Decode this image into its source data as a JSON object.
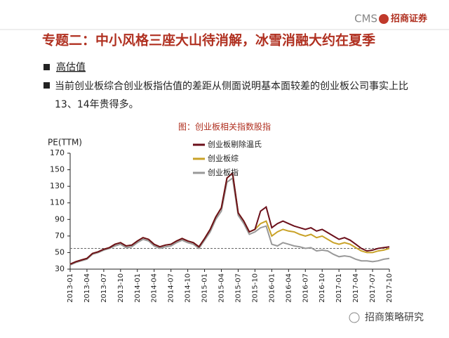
{
  "header": {
    "title": "专题二：中小风格三座大山待消解，冰雪消融大约在夏季",
    "logo_brand": "CMS",
    "logo_name": "招商证券"
  },
  "bullets": [
    "高估值",
    "当前创业板综合创业板指估值的差距从侧面说明基本面较差的创业板公司事实上比13、14年贵得多。"
  ],
  "footer": "招商策略研究",
  "chart_data": {
    "type": "line",
    "title": "图：创业板相关指数股指",
    "y_label": "PE(TTM)",
    "categories": [
      "2013-01",
      null,
      null,
      "2013-04",
      null,
      null,
      "2013-07",
      null,
      null,
      "2013-10",
      null,
      null,
      "2014-01",
      null,
      null,
      "2014-04",
      null,
      null,
      "2014-07",
      null,
      null,
      "2014-10",
      null,
      null,
      "2015-01",
      null,
      null,
      "2015-04",
      null,
      null,
      "2015-07",
      null,
      null,
      "2015-10",
      null,
      null,
      "2016-01",
      null,
      null,
      "2016-04",
      null,
      null,
      "2016-07",
      null,
      null,
      "2016-10",
      null,
      null,
      "2017-01",
      null,
      null,
      "2017-04",
      null,
      null,
      "2017-07",
      null,
      null,
      "2017-10"
    ],
    "series": [
      {
        "name": "创业板剔除温氏",
        "color": "#6b0f1a",
        "values": [
          36,
          39,
          41,
          43,
          49,
          51,
          54,
          56,
          60,
          62,
          58,
          59,
          64,
          68,
          66,
          60,
          57,
          59,
          60,
          64,
          67,
          64,
          62,
          57,
          67,
          78,
          93,
          104,
          140,
          146,
          98,
          88,
          75,
          78,
          100,
          105,
          80,
          85,
          88,
          85,
          82,
          80,
          78,
          80,
          76,
          78,
          74,
          70,
          66,
          68,
          65,
          60,
          55,
          52,
          53,
          55,
          56,
          57
        ]
      },
      {
        "name": "创业板综",
        "color": "#c9a227",
        "values": [
          36,
          39,
          41,
          43,
          49,
          51,
          54,
          56,
          60,
          62,
          58,
          59,
          64,
          68,
          66,
          60,
          57,
          59,
          60,
          64,
          67,
          64,
          62,
          57,
          67,
          78,
          93,
          104,
          140,
          146,
          98,
          88,
          75,
          78,
          85,
          88,
          70,
          75,
          78,
          76,
          75,
          72,
          70,
          72,
          68,
          70,
          66,
          62,
          60,
          62,
          60,
          56,
          52,
          50,
          50,
          52,
          53,
          55
        ]
      },
      {
        "name": "创业板指",
        "color": "#999999",
        "values": [
          35,
          38,
          40,
          42,
          48,
          50,
          53,
          55,
          58,
          60,
          56,
          57,
          62,
          66,
          64,
          58,
          55,
          57,
          58,
          62,
          65,
          62,
          60,
          55,
          65,
          75,
          90,
          100,
          135,
          140,
          95,
          85,
          72,
          75,
          80,
          82,
          60,
          58,
          62,
          60,
          58,
          57,
          55,
          56,
          52,
          53,
          52,
          48,
          45,
          46,
          45,
          42,
          40,
          40,
          39,
          40,
          42,
          43
        ]
      }
    ],
    "reference_line": 55,
    "reference_color": "#666666",
    "ylim": [
      30,
      170
    ],
    "yticks": [
      30,
      50,
      70,
      90,
      110,
      130,
      150,
      170
    ]
  }
}
